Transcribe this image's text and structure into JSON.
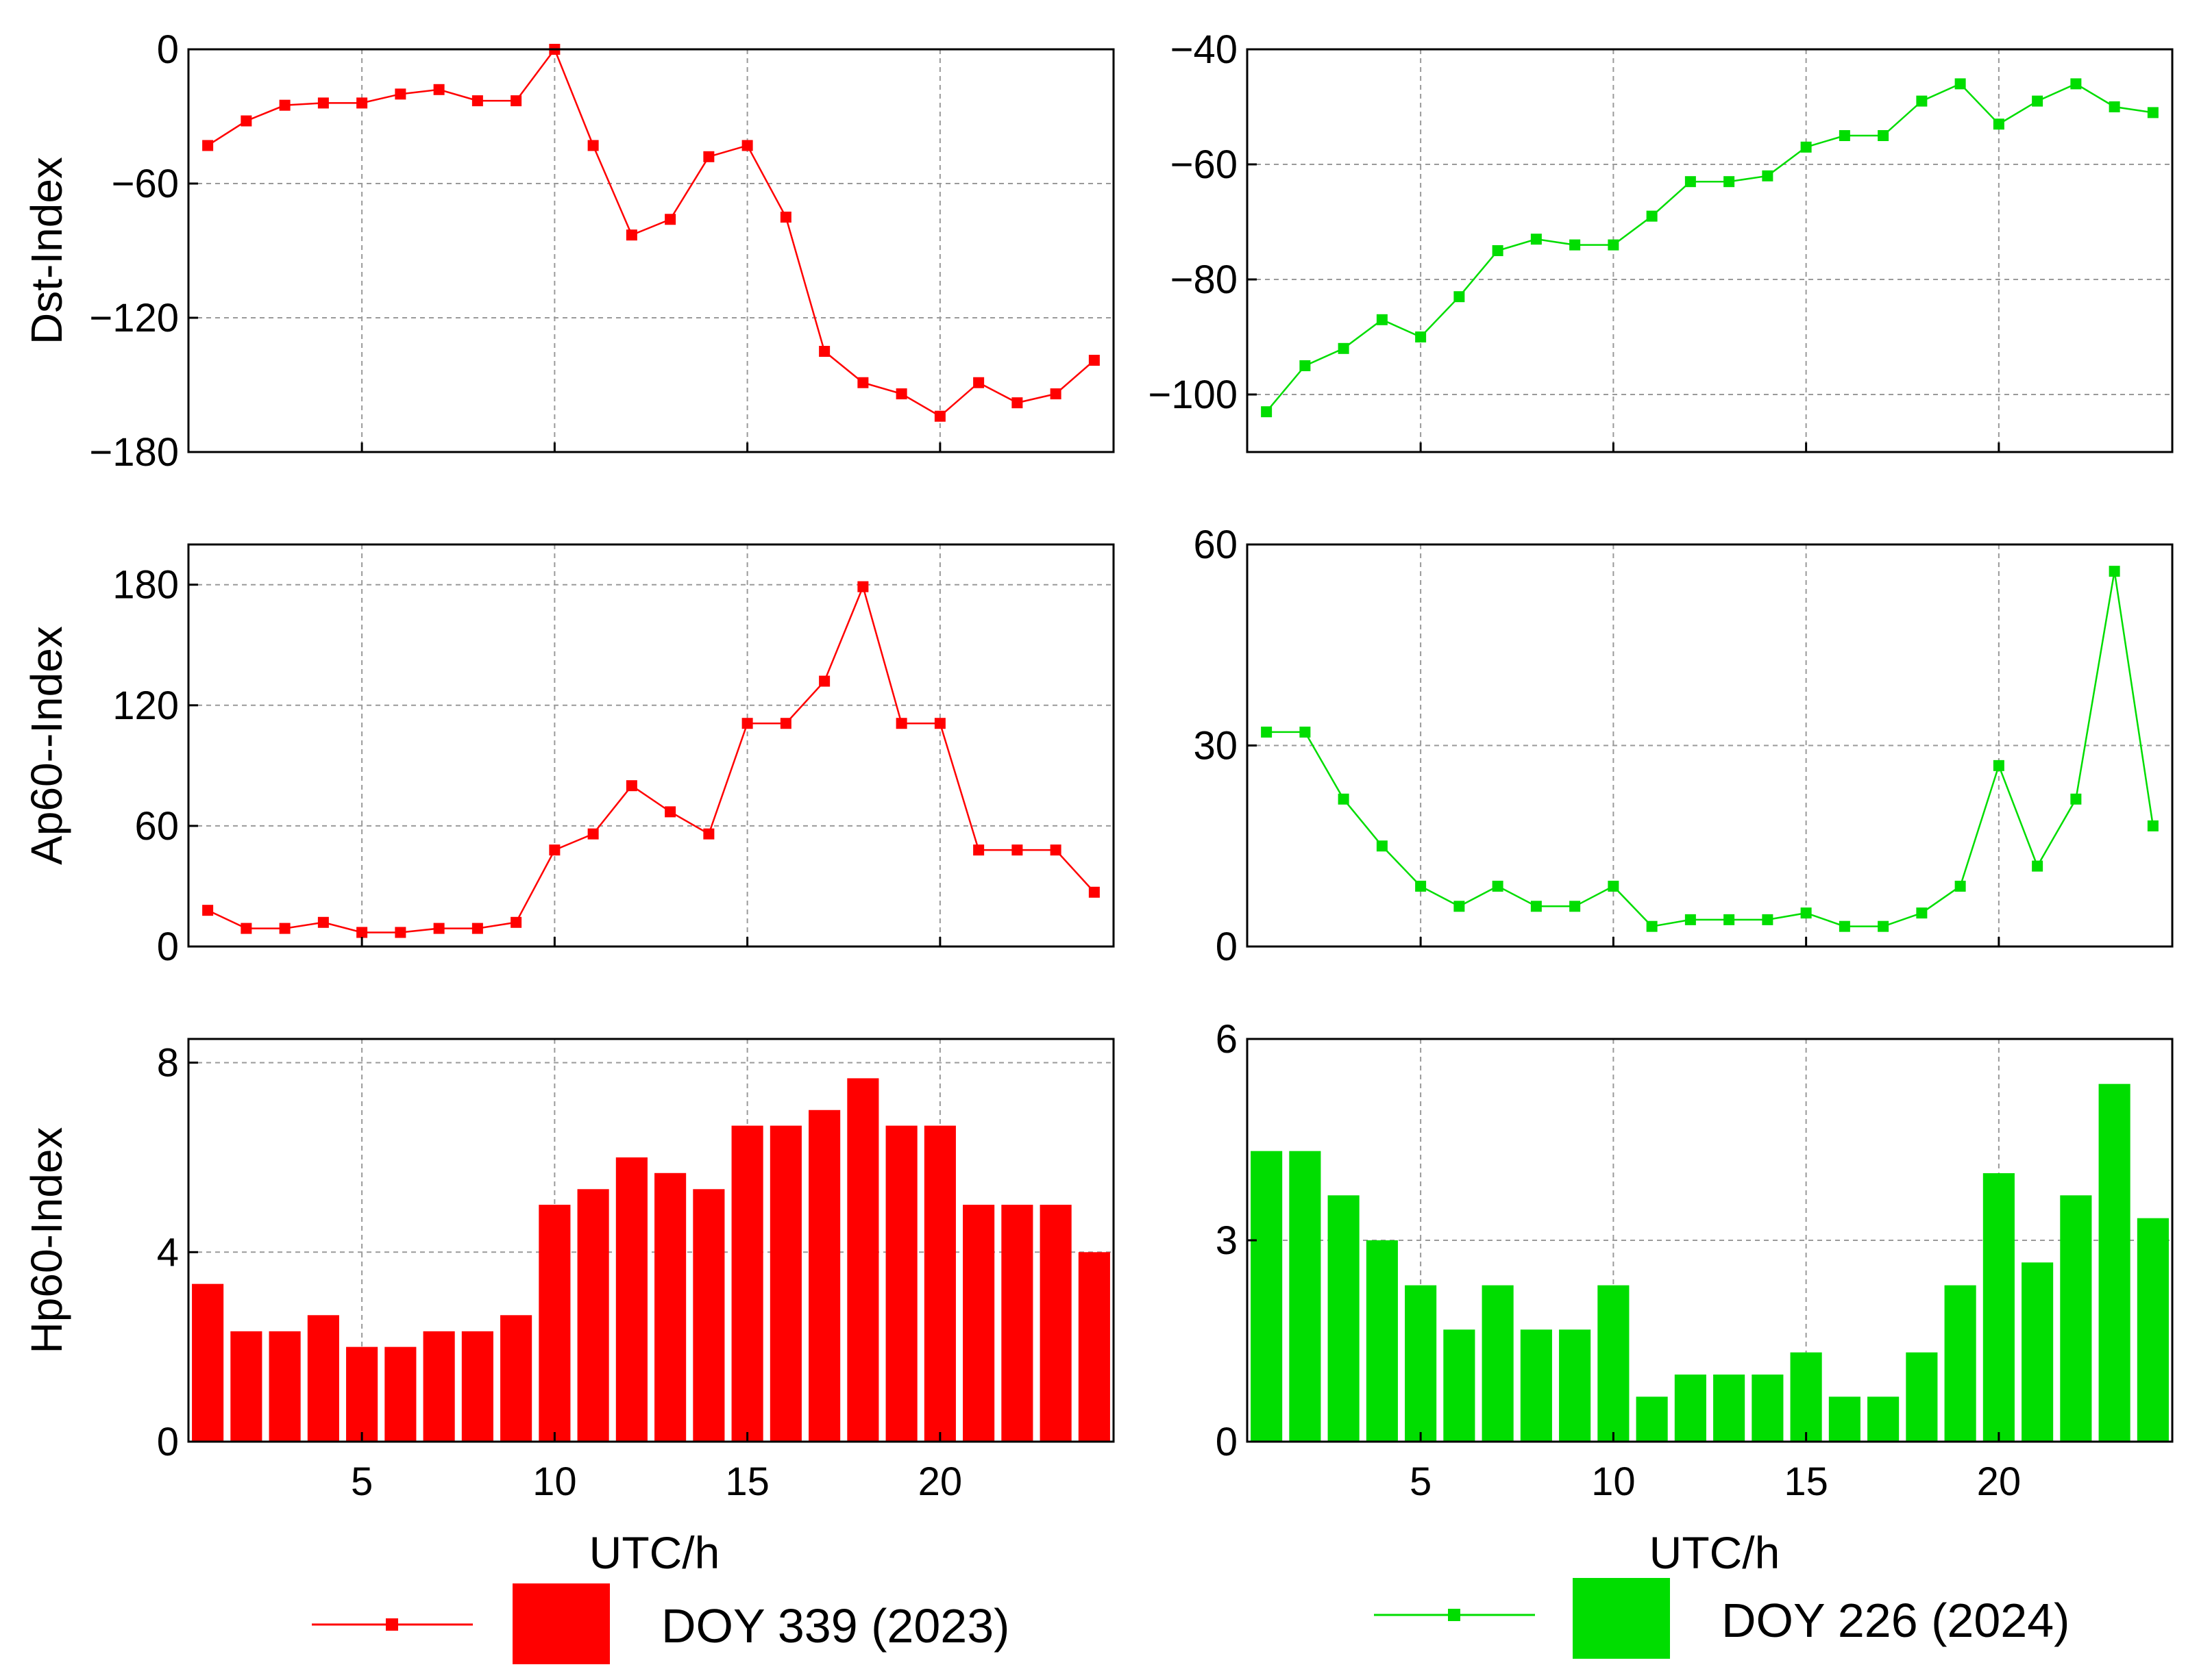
{
  "colors": {
    "red": "#ff0000",
    "green": "#00dd00"
  },
  "x_ticks": [
    "5",
    "10",
    "15",
    "20"
  ],
  "x_title": "UTC/h",
  "legend": [
    {
      "label": "DOY 339 (2023)",
      "color": "#ff0000"
    },
    {
      "label": "DOY 226 (2024)",
      "color": "#00dd00"
    }
  ],
  "chart_data": [
    {
      "type": "line",
      "ylabel": "Dst-Index",
      "color": "#ff0000",
      "xlim": [
        0.5,
        24.5
      ],
      "ylim": [
        -180,
        0
      ],
      "yticks": [
        0,
        -60,
        -120,
        -180
      ],
      "ytick_labels": [
        "0",
        "−60",
        "−120",
        "−180"
      ],
      "x": [
        1,
        2,
        3,
        4,
        5,
        6,
        7,
        8,
        9,
        10,
        11,
        12,
        13,
        14,
        15,
        16,
        17,
        18,
        19,
        20,
        21,
        22,
        23,
        24
      ],
      "values": [
        -43,
        -32,
        -25,
        -24,
        -24,
        -20,
        -18,
        -23,
        -23,
        0,
        -43,
        -83,
        -76,
        -48,
        -43,
        -75,
        -135,
        -149,
        -154,
        -164,
        -149,
        -158,
        -154,
        -139
      ]
    },
    {
      "type": "line",
      "ylabel": "",
      "color": "#00dd00",
      "xlim": [
        0.5,
        24.5
      ],
      "ylim": [
        -110,
        -40
      ],
      "yticks": [
        -40,
        -60,
        -80,
        -100
      ],
      "ytick_labels": [
        "−40",
        "−60",
        "−80",
        "−100"
      ],
      "x": [
        1,
        2,
        3,
        4,
        5,
        6,
        7,
        8,
        9,
        10,
        11,
        12,
        13,
        14,
        15,
        16,
        17,
        18,
        19,
        20,
        21,
        22,
        23,
        24
      ],
      "values": [
        -103,
        -95,
        -92,
        -87,
        -90,
        -83,
        -75,
        -73,
        -74,
        -74,
        -69,
        -63,
        -63,
        -62,
        -57,
        -55,
        -55,
        -49,
        -46,
        -53,
        -49,
        -46,
        -50,
        -51
      ]
    },
    {
      "type": "line",
      "ylabel": "Ap60--Index",
      "color": "#ff0000",
      "xlim": [
        0.5,
        24.5
      ],
      "ylim": [
        0,
        200
      ],
      "yticks": [
        0,
        60,
        120,
        180
      ],
      "ytick_labels": [
        "0",
        "60",
        "120",
        "180"
      ],
      "x": [
        1,
        2,
        3,
        4,
        5,
        6,
        7,
        8,
        9,
        10,
        11,
        12,
        13,
        14,
        15,
        16,
        17,
        18,
        19,
        20,
        21,
        22,
        23,
        24
      ],
      "values": [
        18,
        9,
        9,
        12,
        7,
        7,
        9,
        9,
        12,
        48,
        56,
        80,
        67,
        56,
        111,
        111,
        132,
        179,
        111,
        111,
        48,
        48,
        48,
        27
      ]
    },
    {
      "type": "line",
      "ylabel": "",
      "color": "#00dd00",
      "xlim": [
        0.5,
        24.5
      ],
      "ylim": [
        0,
        60
      ],
      "yticks": [
        0,
        30,
        60
      ],
      "ytick_labels": [
        "0",
        "30",
        "60"
      ],
      "x": [
        1,
        2,
        3,
        4,
        5,
        6,
        7,
        8,
        9,
        10,
        11,
        12,
        13,
        14,
        15,
        16,
        17,
        18,
        19,
        20,
        21,
        22,
        23,
        24
      ],
      "values": [
        32,
        32,
        22,
        15,
        9,
        6,
        9,
        6,
        6,
        9,
        3,
        4,
        4,
        4,
        5,
        3,
        3,
        5,
        9,
        27,
        12,
        22,
        56,
        18
      ]
    },
    {
      "type": "bar",
      "ylabel": "Hp60-Index",
      "color": "#ff0000",
      "xlim": [
        0.5,
        24.5
      ],
      "ylim": [
        0,
        8.5
      ],
      "yticks": [
        0,
        4,
        8
      ],
      "ytick_labels": [
        "0",
        "4",
        "8"
      ],
      "x": [
        1,
        2,
        3,
        4,
        5,
        6,
        7,
        8,
        9,
        10,
        11,
        12,
        13,
        14,
        15,
        16,
        17,
        18,
        19,
        20,
        21,
        22,
        23,
        24
      ],
      "values": [
        3.33,
        2.33,
        2.33,
        2.67,
        2.0,
        2.0,
        2.33,
        2.33,
        2.67,
        5.0,
        5.33,
        6.0,
        5.67,
        5.33,
        6.67,
        6.67,
        7.0,
        7.67,
        6.67,
        6.67,
        5.0,
        5.0,
        5.0,
        4.0
      ]
    },
    {
      "type": "bar",
      "ylabel": "",
      "color": "#00dd00",
      "xlim": [
        0.5,
        24.5
      ],
      "ylim": [
        0,
        6
      ],
      "yticks": [
        0,
        3,
        6
      ],
      "ytick_labels": [
        "0",
        "3",
        "6"
      ],
      "x": [
        1,
        2,
        3,
        4,
        5,
        6,
        7,
        8,
        9,
        10,
        11,
        12,
        13,
        14,
        15,
        16,
        17,
        18,
        19,
        20,
        21,
        22,
        23,
        24
      ],
      "values": [
        4.33,
        4.33,
        3.67,
        3.0,
        2.33,
        1.67,
        2.33,
        1.67,
        1.67,
        2.33,
        0.67,
        1.0,
        1.0,
        1.0,
        1.33,
        0.67,
        0.67,
        1.33,
        2.33,
        4.0,
        2.67,
        3.67,
        5.33,
        3.33
      ]
    }
  ]
}
